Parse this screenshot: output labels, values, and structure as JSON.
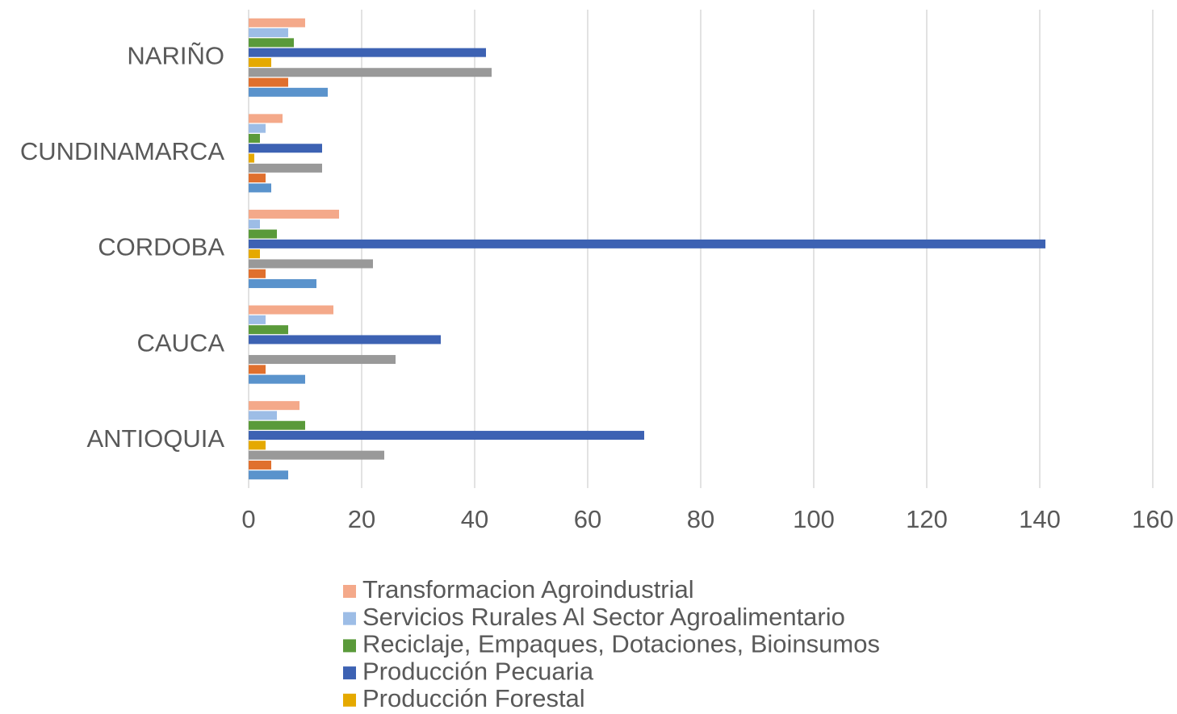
{
  "chart_data": {
    "type": "barh",
    "categories": [
      "NARIÑO",
      "CUNDINAMARCA",
      "CORDOBA",
      "CAUCA",
      "ANTIOQUIA"
    ],
    "series": [
      {
        "name": "Transformacion Agroindustrial",
        "color": "#f4a98a",
        "values": [
          10,
          6,
          16,
          15,
          9
        ]
      },
      {
        "name": "Servicios Rurales Al Sector Agroalimentario",
        "color": "#9dbde6",
        "values": [
          7,
          3,
          2,
          3,
          5
        ]
      },
      {
        "name": "Reciclaje, Empaques, Dotaciones, Bioinsumos",
        "color": "#5a9a3a",
        "values": [
          8,
          2,
          5,
          7,
          10
        ]
      },
      {
        "name": "Producción Pecuaria",
        "color": "#3d62b3",
        "values": [
          42,
          13,
          141,
          34,
          70
        ]
      },
      {
        "name": "Producción Forestal",
        "color": "#e5a900",
        "values": [
          4,
          1,
          2,
          0,
          3
        ]
      },
      {
        "name": null,
        "color": "#999999",
        "values": [
          43,
          13,
          22,
          26,
          24
        ]
      },
      {
        "name": null,
        "color": "#e0702e",
        "values": [
          7,
          3,
          3,
          3,
          4
        ]
      },
      {
        "name": null,
        "color": "#5a93cc",
        "values": [
          14,
          4,
          12,
          10,
          7
        ]
      }
    ],
    "xlim": [
      0,
      160
    ],
    "xticks": [
      0,
      20,
      40,
      60,
      80,
      100,
      120,
      140,
      160
    ],
    "grid": true
  }
}
